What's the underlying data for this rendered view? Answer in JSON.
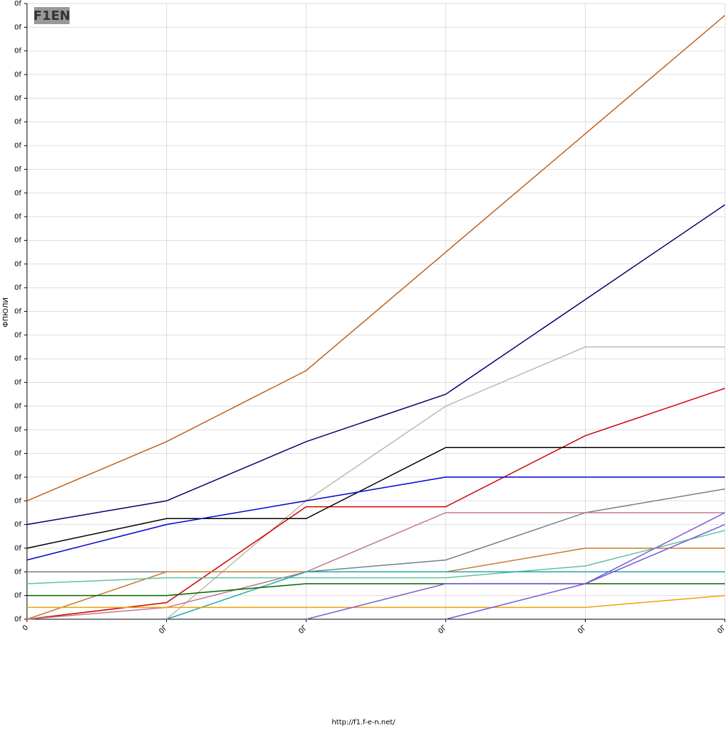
{
  "chart_data": {
    "type": "line",
    "logo": "F1EN",
    "ylabel": "ФПЮЛИ",
    "footer": "http://f1.f-e-n.net/",
    "x": [
      {
        "value": 0,
        "label": "0"
      },
      {
        "value": 1,
        "label": "0Г"
      },
      {
        "value": 2,
        "label": "0Г"
      },
      {
        "value": 3,
        "label": "0Г"
      },
      {
        "value": 4,
        "label": "0Г"
      },
      {
        "value": 5,
        "label": "0Г"
      }
    ],
    "xlim": [
      0,
      5
    ],
    "ylim": [
      0,
      26
    ],
    "yticks": [
      {
        "value": 0,
        "label": "0f"
      },
      {
        "value": 1,
        "label": "0f"
      },
      {
        "value": 2,
        "label": "0f"
      },
      {
        "value": 3,
        "label": "0f"
      },
      {
        "value": 4,
        "label": "0f"
      },
      {
        "value": 5,
        "label": "0f"
      },
      {
        "value": 6,
        "label": "0f"
      },
      {
        "value": 7,
        "label": "0f"
      },
      {
        "value": 8,
        "label": "0f"
      },
      {
        "value": 9,
        "label": "0f"
      },
      {
        "value": 10,
        "label": "0f"
      },
      {
        "value": 11,
        "label": "0f"
      },
      {
        "value": 12,
        "label": "0f"
      },
      {
        "value": 13,
        "label": "0f"
      },
      {
        "value": 14,
        "label": "0f"
      },
      {
        "value": 15,
        "label": "0f"
      },
      {
        "value": 16,
        "label": "0f"
      },
      {
        "value": 17,
        "label": "0f"
      },
      {
        "value": 18,
        "label": "0f"
      },
      {
        "value": 19,
        "label": "0f"
      },
      {
        "value": 20,
        "label": "0f"
      },
      {
        "value": 21,
        "label": "0f"
      },
      {
        "value": 22,
        "label": "0f"
      },
      {
        "value": 23,
        "label": "0f"
      },
      {
        "value": 24,
        "label": "0f"
      },
      {
        "value": 25,
        "label": "0f"
      },
      {
        "value": 26,
        "label": "0f"
      }
    ],
    "grid": true,
    "series": [
      {
        "color": "#c0601a",
        "values": [
          5,
          7.5,
          10.5,
          15.5,
          20.5,
          25.5
        ]
      },
      {
        "color": "#000070",
        "values": [
          4,
          5,
          7.5,
          9.5,
          13.5,
          17.5
        ]
      },
      {
        "color": "#c8b4a8",
        "values": [
          null,
          0,
          5,
          9,
          11.5,
          11.5
        ]
      },
      {
        "color": "#d00000",
        "values": [
          0,
          0.7,
          4.75,
          4.75,
          7.75,
          9.75
        ]
      },
      {
        "color": "#000000",
        "values": [
          3,
          4.25,
          4.25,
          7.25,
          7.25,
          7.25
        ]
      },
      {
        "color": "#0000d0",
        "values": [
          2.5,
          4,
          5,
          6,
          6,
          6
        ]
      },
      {
        "color": "#708090",
        "values": [
          2,
          2,
          2,
          2.5,
          4.5,
          5.5
        ]
      },
      {
        "color": "#c07888",
        "values": [
          0,
          0.5,
          2,
          4.5,
          4.5,
          4.5
        ]
      },
      {
        "color": "#c87830",
        "values": [
          0,
          2,
          2,
          2,
          3,
          3
        ]
      },
      {
        "color": "#60c0a0",
        "values": [
          1.5,
          1.75,
          1.75,
          1.75,
          2.25,
          3.75
        ]
      },
      {
        "color": "#20a8b0",
        "values": [
          null,
          0,
          2,
          2,
          2,
          2
        ]
      },
      {
        "color": "#006400",
        "values": [
          1,
          1,
          1.5,
          1.5,
          1.5,
          1.5
        ]
      },
      {
        "color": "#f0a000",
        "values": [
          0.5,
          0.5,
          0.5,
          0.5,
          0.5,
          1
        ]
      },
      {
        "color": "#8060d0",
        "values": [
          null,
          null,
          0,
          1.5,
          1.5,
          4.5
        ]
      },
      {
        "color": "#7058e0",
        "values": [
          null,
          null,
          null,
          0,
          1.5,
          4
        ]
      }
    ]
  }
}
